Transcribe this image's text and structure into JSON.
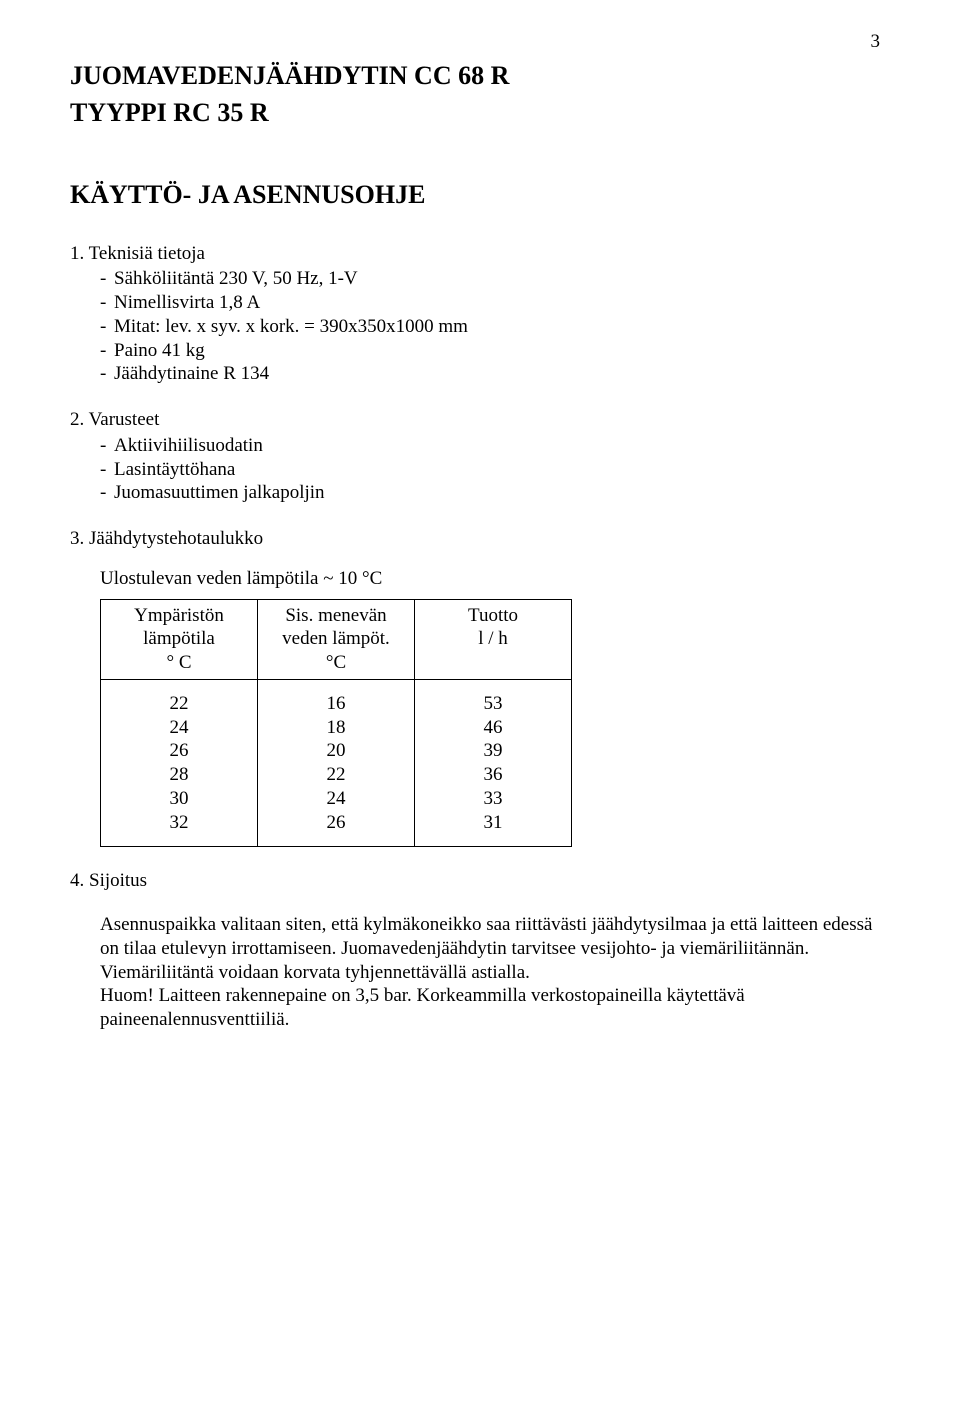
{
  "page_number": "3",
  "heading_line1": "JUOMAVEDENJÄÄHDYTIN CC 68 R",
  "heading_line2": "TYYPPI RC 35 R",
  "section_head": "KÄYTTÖ- JA ASENNUSOHJE",
  "sec1": {
    "title": "1. Teknisiä tietoja",
    "items": [
      "Sähköliitäntä 230 V, 50 Hz, 1-V",
      "Nimellisvirta 1,8 A",
      "Mitat: lev. x syv. x kork. = 390x350x1000 mm",
      "Paino 41 kg",
      "Jäähdytinaine R 134"
    ]
  },
  "sec2": {
    "title": "2. Varusteet",
    "items": [
      "Aktiivihiilisuodatin",
      "Lasintäyttöhana",
      "Juomasuuttimen jalkapoljin"
    ]
  },
  "sec3": {
    "title": "3. Jäähdytystehotaulukko",
    "subtext": "Ulostulevan veden lämpötila ~ 10 °C",
    "table": {
      "headers": [
        "Ympäristön\nlämpötila\n° C",
        "Sis. menevän\nveden lämpöt.\n°C",
        "Tuotto\nl / h"
      ],
      "rows": [
        [
          "22",
          "16",
          "53"
        ],
        [
          "24",
          "18",
          "46"
        ],
        [
          "26",
          "20",
          "39"
        ],
        [
          "28",
          "22",
          "36"
        ],
        [
          "30",
          "24",
          "33"
        ],
        [
          "32",
          "26",
          "31"
        ]
      ]
    }
  },
  "sec4": {
    "title": "4. Sijoitus",
    "body": "Asennuspaikka valitaan siten, että kylmäkoneikko saa riittävästi jäähdytysilmaa ja että laitteen edessä on tilaa etulevyn irrottamiseen. Juomavedenjäähdytin tarvitsee vesijohto- ja viemäriliitännän. Viemäriliitäntä voidaan korvata tyhjennettävällä astialla.\nHuom! Laitteen rakennepaine on 3,5 bar. Korkeammilla verkostopaineilla käytettävä paineenalennusventtiiliä."
  }
}
